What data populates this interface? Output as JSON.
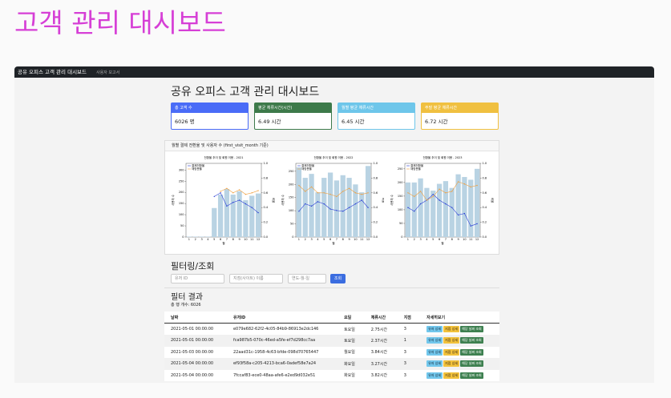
{
  "page_title": "고객 관리 대시보드",
  "navbar": {
    "brand": "공유 오피스 고객 관리 대시보드",
    "link": "사용자 보고서"
  },
  "heading": "공유 오피스 고객 관리 대시보드",
  "cards": [
    {
      "label": "총 고객 수",
      "value": "6026 명"
    },
    {
      "label": "평균 체류시간(시간)",
      "value": "6.49 시간"
    },
    {
      "label": "월별 평균 체류시간",
      "value": "6.45 시간"
    },
    {
      "label": "주말 평균 체류시간",
      "value": "6.72 시간"
    }
  ],
  "chart_panel_title": "월별 결제 전환율 및 사용자 수 (first_visit_month 기준)",
  "chart_data": [
    {
      "type": "bar",
      "title": "전환율 추이 및 회원 이용 - 2021",
      "x_label": "월",
      "y_label": "사용자 수",
      "y2_label": "비율",
      "categories": [
        "1",
        "2",
        "3",
        "4",
        "5",
        "6",
        "7",
        "8",
        "9",
        "10",
        "11",
        "12"
      ],
      "ylim": [
        0,
        330
      ],
      "yticks": [
        0,
        50,
        100,
        150,
        200,
        250,
        300
      ],
      "y2lim": [
        0,
        1
      ],
      "y2ticks": [
        {
          "value": 0,
          "label": "0.0"
        },
        0.2,
        0.4,
        0.6,
        0.8,
        {
          "value": 1,
          "label": "1.0"
        }
      ],
      "series": [
        {
          "name": "사용자 수",
          "type": "bar",
          "color": "#b9d3e3",
          "values": [
            2,
            2,
            2,
            2,
            130,
            190,
            215,
            190,
            205,
            165,
            185,
            195
          ]
        },
        {
          "name": "결제전환율",
          "type": "line",
          "axis": "y2",
          "color": "#2b3fd6",
          "values": [
            null,
            null,
            null,
            null,
            0.55,
            0.6,
            0.42,
            0.47,
            0.5,
            0.45,
            0.4,
            0.33
          ]
        },
        {
          "name": "재방문율",
          "type": "line",
          "axis": "y2",
          "color": "#f0a040",
          "values": [
            null,
            null,
            null,
            null,
            null,
            0.62,
            0.66,
            0.6,
            0.64,
            0.58,
            0.6,
            0.63
          ]
        }
      ]
    },
    {
      "type": "bar",
      "title": "전환율 추이 및 회원 이용 - 2022",
      "x_label": "월",
      "y_label": "사용자 수",
      "y2_label": "비율",
      "categories": [
        "1",
        "2",
        "3",
        "4",
        "5",
        "6",
        "7",
        "8",
        "9",
        "10",
        "11",
        "12"
      ],
      "ylim": [
        0,
        280
      ],
      "yticks": [
        0,
        50,
        100,
        150,
        200,
        250
      ],
      "y2lim": [
        0,
        1
      ],
      "y2ticks": [
        {
          "value": 0,
          "label": "0.0"
        },
        0.2,
        0.4,
        0.6,
        0.8,
        {
          "value": 1,
          "label": "1.0"
        }
      ],
      "series": [
        {
          "name": "사용자 수",
          "type": "bar",
          "color": "#b9d3e3",
          "values": [
            265,
            225,
            240,
            170,
            225,
            245,
            215,
            235,
            225,
            200,
            170,
            270
          ]
        },
        {
          "name": "결제전환율",
          "type": "line",
          "axis": "y2",
          "color": "#2b3fd6",
          "values": [
            0.35,
            0.45,
            0.42,
            0.48,
            0.45,
            0.38,
            0.36,
            0.35,
            0.4,
            0.45,
            0.5,
            0.4
          ]
        },
        {
          "name": "재방문율",
          "type": "line",
          "axis": "y2",
          "color": "#f0a040",
          "values": [
            0.7,
            0.62,
            0.68,
            0.6,
            0.6,
            0.58,
            0.55,
            0.62,
            0.66,
            0.6,
            0.58,
            0.6
          ]
        }
      ]
    },
    {
      "type": "bar",
      "title": "전환율 추이 및 회원 이용 - 2023",
      "x_label": "월",
      "y_label": "사용자 수",
      "y2_label": "비율",
      "categories": [
        "1",
        "2",
        "3",
        "4",
        "5",
        "6",
        "7",
        "8",
        "9",
        "10",
        "11",
        "12"
      ],
      "ylim": [
        0,
        270
      ],
      "yticks": [
        0,
        50,
        100,
        150,
        200,
        250
      ],
      "y2lim": [
        0,
        1
      ],
      "y2ticks": [
        {
          "value": 0,
          "label": "0.0"
        },
        0.2,
        0.4,
        0.6,
        0.8,
        {
          "value": 1,
          "label": "1.0"
        }
      ],
      "series": [
        {
          "name": "사용자 수",
          "type": "bar",
          "color": "#b9d3e3",
          "values": [
            200,
            200,
            215,
            180,
            170,
            195,
            205,
            180,
            230,
            220,
            210,
            250
          ]
        },
        {
          "name": "결제전환율",
          "type": "line",
          "axis": "y2",
          "color": "#2b3fd6",
          "values": [
            0.4,
            0.35,
            0.45,
            0.5,
            0.58,
            0.5,
            0.45,
            0.4,
            0.3,
            0.32,
            0.15,
            0.18
          ]
        },
        {
          "name": "재방문율",
          "type": "line",
          "axis": "y2",
          "color": "#f0a040",
          "values": [
            0.6,
            0.55,
            0.62,
            0.5,
            0.55,
            0.65,
            0.6,
            0.62,
            0.75,
            0.72,
            0.68,
            0.7
          ]
        }
      ]
    }
  ],
  "filter": {
    "heading": "필터링/조회",
    "user_placeholder": "유저 ID",
    "site_placeholder": "지점(사이트) 이름",
    "date_placeholder": "연도-월-일",
    "button": "조회"
  },
  "results": {
    "heading": "필터 결과",
    "count": "총 행 개수: 6026"
  },
  "table": {
    "columns": [
      "날짜",
      "유저ID",
      "요일",
      "체류시간",
      "지점",
      "자세히보기"
    ],
    "actions": [
      "유저 상세",
      "지점 상세",
      "해당 날짜 조회"
    ],
    "rows": [
      [
        "2021-05-01 00:00:00",
        "e079e682-62f2-4c05-84b9-86913e2dc146",
        "토요일",
        "2.75시간",
        "3"
      ],
      [
        "2021-05-01 00:00:00",
        "fca987b5-070c-46ed-a5fe-ef7d298cc7aa",
        "토요일",
        "2.37시간",
        "1"
      ],
      [
        "2021-05-03 00:00:00",
        "22aad31c-1958-4c63-bfde-098d70765447",
        "월요일",
        "3.84시간",
        "3"
      ],
      [
        "2021-05-04 00:00:00",
        "ef93f58a-c205-4213-bca6-0adef58e7a24",
        "화요일",
        "3.27시간",
        "3"
      ],
      [
        "2021-05-04 00:00:00",
        "7fccaf83-ece0-48aa-afe6-e2ed9d032e51",
        "화요일",
        "3.82시간",
        "3"
      ]
    ]
  }
}
